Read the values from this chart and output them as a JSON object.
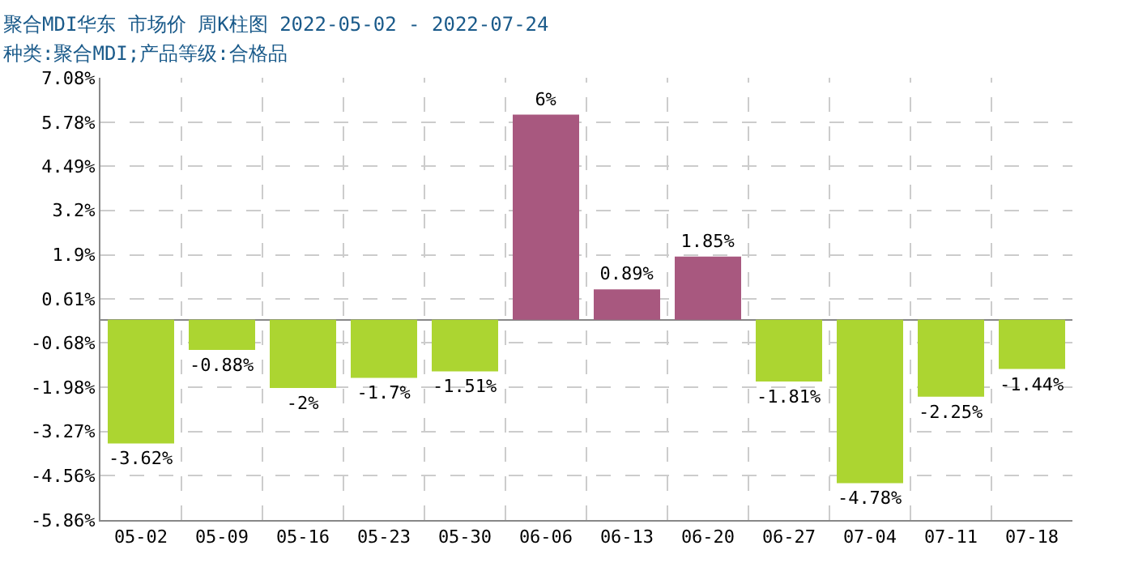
{
  "chart_data": {
    "type": "bar",
    "title": "聚合MDI华东 市场价 周K柱图 2022-05-02 - 2022-07-24",
    "subtitle": "种类:聚合MDI;产品等级:合格品",
    "categories": [
      "05-02",
      "05-09",
      "05-16",
      "05-23",
      "05-30",
      "06-06",
      "06-13",
      "06-20",
      "06-27",
      "07-04",
      "07-11",
      "07-18"
    ],
    "values": [
      -3.62,
      -0.88,
      -2,
      -1.7,
      -1.51,
      6,
      0.89,
      1.85,
      -1.81,
      -4.78,
      -2.25,
      -1.44
    ],
    "colors": [
      "#acd531",
      "#acd531",
      "#acd531",
      "#acd531",
      "#acd531",
      "#a8587f",
      "#a8587f",
      "#a8587f",
      "#acd531",
      "#acd531",
      "#acd531",
      "#acd531"
    ],
    "value_labels": [
      "-3.62%",
      "-0.88%",
      "-2%",
      "-1.7%",
      "-1.51%",
      "6%",
      "0.89%",
      "1.85%",
      "-1.81%",
      "-4.78%",
      "-2.25%",
      "-1.44%"
    ],
    "ylim": [
      -5.86,
      7.08
    ],
    "yticks": [
      {
        "value": 7.08,
        "label": "7.08%"
      },
      {
        "value": 5.78,
        "label": "5.78%"
      },
      {
        "value": 4.49,
        "label": "4.49%"
      },
      {
        "value": 3.2,
        "label": "3.2%"
      },
      {
        "value": 1.9,
        "label": "1.9%"
      },
      {
        "value": 0.61,
        "label": "0.61%"
      },
      {
        "value": -0.68,
        "label": "-0.68%"
      },
      {
        "value": -1.98,
        "label": "-1.98%"
      },
      {
        "value": -3.27,
        "label": "-3.27%"
      },
      {
        "value": -4.56,
        "label": "-4.56%"
      },
      {
        "value": -5.86,
        "label": "-5.86%"
      }
    ],
    "grid": true,
    "legend": false
  }
}
